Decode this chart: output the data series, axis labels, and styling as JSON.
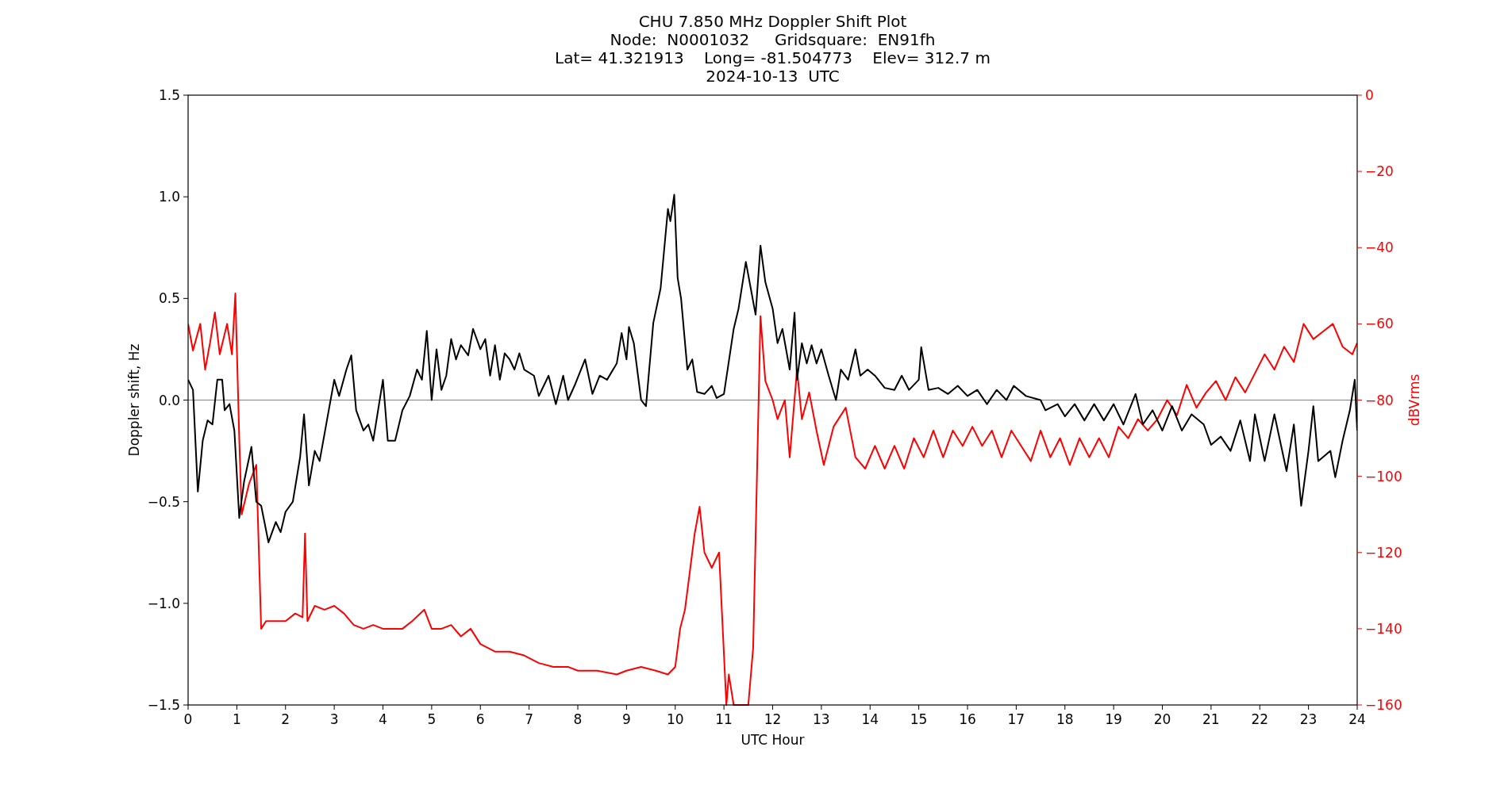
{
  "chart_data": {
    "type": "line",
    "title": "CHU 7.850 MHz Doppler Shift Plot",
    "subtitle": "Node:  N0001032     Gridsquare:  EN91fh\nLat= 41.321913    Long= -81.504773    Elev= 312.7 m\n2024-10-13  UTC",
    "xlabel": "UTC Hour",
    "ylabel": "Doppler shift, Hz",
    "y2label": "dBVrms",
    "xlim": [
      0,
      24
    ],
    "xticks": [
      0,
      1,
      2,
      3,
      4,
      5,
      6,
      7,
      8,
      9,
      10,
      11,
      12,
      13,
      14,
      15,
      16,
      17,
      18,
      19,
      20,
      21,
      22,
      23,
      24
    ],
    "ylim": [
      -1.5,
      1.5
    ],
    "yticks": [
      {
        "value": -1.5,
        "label": "−1.5"
      },
      {
        "value": -1,
        "label": "−1.0"
      },
      {
        "value": -0.5,
        "label": "−0.5"
      },
      {
        "value": 0,
        "label": "0.0"
      },
      {
        "value": 0.5,
        "label": "0.5"
      },
      {
        "value": 1,
        "label": "1.0"
      },
      {
        "value": 1.5,
        "label": "1.5"
      }
    ],
    "y2lim": [
      -160,
      0
    ],
    "y2ticks": [
      {
        "value": -160,
        "label": "−160"
      },
      {
        "value": -140,
        "label": "−140"
      },
      {
        "value": -120,
        "label": "−120"
      },
      {
        "value": -100,
        "label": "−100"
      },
      {
        "value": -80,
        "label": "−80"
      },
      {
        "value": -60,
        "label": "−60"
      },
      {
        "value": -40,
        "label": "−40"
      },
      {
        "value": -20,
        "label": "−20"
      },
      0
    ],
    "grid": false,
    "marker": "none",
    "line_style": "solid",
    "ref_lines": [
      {
        "axis": "y",
        "value": 0,
        "color": "#808080"
      }
    ],
    "series": [
      {
        "color": "#000000",
        "x": [
          0,
          0.1,
          0.2,
          0.3,
          0.4,
          0.5,
          0.6,
          0.7,
          0.75,
          0.85,
          0.95,
          1.05,
          1.15,
          1.3,
          1.4,
          1.5,
          1.65,
          1.8,
          1.9,
          2.0,
          2.15,
          2.3,
          2.38,
          2.48,
          2.6,
          2.7,
          2.85,
          3.0,
          3.1,
          3.25,
          3.35,
          3.45,
          3.6,
          3.7,
          3.8,
          4.0,
          4.1,
          4.25,
          4.4,
          4.55,
          4.7,
          4.8,
          4.9,
          5.0,
          5.1,
          5.2,
          5.3,
          5.4,
          5.5,
          5.6,
          5.75,
          5.85,
          6.0,
          6.1,
          6.2,
          6.3,
          6.4,
          6.5,
          6.6,
          6.7,
          6.8,
          6.9,
          7.1,
          7.2,
          7.4,
          7.55,
          7.7,
          7.8,
          7.95,
          8.15,
          8.3,
          8.45,
          8.6,
          8.8,
          8.9,
          9.0,
          9.05,
          9.15,
          9.3,
          9.4,
          9.55,
          9.7,
          9.85,
          9.9,
          9.98,
          10.05,
          10.12,
          10.25,
          10.35,
          10.45,
          10.6,
          10.75,
          10.85,
          11.0,
          11.2,
          11.3,
          11.45,
          11.55,
          11.65,
          11.75,
          11.85,
          12.0,
          12.1,
          12.2,
          12.35,
          12.45,
          12.5,
          12.6,
          12.7,
          12.8,
          12.9,
          13.0,
          13.15,
          13.3,
          13.4,
          13.55,
          13.7,
          13.8,
          13.95,
          14.1,
          14.3,
          14.5,
          14.65,
          14.8,
          15.0,
          15.05,
          15.2,
          15.4,
          15.6,
          15.8,
          16.0,
          16.2,
          16.4,
          16.6,
          16.8,
          16.95,
          17.2,
          17.5,
          17.6,
          17.85,
          18.0,
          18.2,
          18.4,
          18.6,
          18.8,
          19.0,
          19.2,
          19.45,
          19.6,
          19.8,
          20.0,
          20.2,
          20.4,
          20.6,
          20.85,
          21.0,
          21.2,
          21.4,
          21.6,
          21.8,
          21.9,
          22.1,
          22.3,
          22.55,
          22.7,
          22.85,
          23.0,
          23.1,
          23.2,
          23.45,
          23.55,
          23.7,
          23.85,
          23.95,
          24.0
        ],
        "values": [
          0.1,
          0.05,
          -0.45,
          -0.2,
          -0.1,
          -0.12,
          0.1,
          0.1,
          -0.05,
          -0.02,
          -0.15,
          -0.58,
          -0.4,
          -0.23,
          -0.5,
          -0.52,
          -0.7,
          -0.6,
          -0.65,
          -0.55,
          -0.5,
          -0.28,
          -0.07,
          -0.42,
          -0.25,
          -0.3,
          -0.1,
          0.1,
          0.02,
          0.15,
          0.22,
          -0.05,
          -0.15,
          -0.12,
          -0.2,
          0.1,
          -0.2,
          -0.2,
          -0.05,
          0.02,
          0.15,
          0.1,
          0.34,
          0.0,
          0.25,
          0.05,
          0.12,
          0.3,
          0.2,
          0.27,
          0.22,
          0.35,
          0.25,
          0.3,
          0.12,
          0.27,
          0.1,
          0.23,
          0.2,
          0.15,
          0.23,
          0.15,
          0.12,
          0.02,
          0.12,
          -0.02,
          0.12,
          0.0,
          0.08,
          0.2,
          0.03,
          0.12,
          0.1,
          0.18,
          0.33,
          0.2,
          0.36,
          0.28,
          0.0,
          -0.03,
          0.38,
          0.55,
          0.94,
          0.88,
          1.01,
          0.6,
          0.5,
          0.15,
          0.2,
          0.04,
          0.03,
          0.07,
          0.01,
          0.03,
          0.35,
          0.45,
          0.68,
          0.55,
          0.42,
          0.76,
          0.58,
          0.45,
          0.28,
          0.35,
          0.15,
          0.43,
          0.1,
          0.28,
          0.18,
          0.27,
          0.18,
          0.25,
          0.12,
          0.0,
          0.15,
          0.1,
          0.25,
          0.12,
          0.15,
          0.12,
          0.06,
          0.05,
          0.12,
          0.05,
          0.1,
          0.26,
          0.05,
          0.06,
          0.03,
          0.07,
          0.02,
          0.05,
          -0.02,
          0.05,
          0.0,
          0.07,
          0.02,
          0.0,
          -0.05,
          -0.02,
          -0.08,
          -0.02,
          -0.1,
          -0.02,
          -0.1,
          -0.02,
          -0.12,
          0.03,
          -0.12,
          -0.05,
          -0.15,
          -0.03,
          -0.15,
          -0.07,
          -0.12,
          -0.22,
          -0.18,
          -0.25,
          -0.1,
          -0.3,
          -0.07,
          -0.3,
          -0.07,
          -0.35,
          -0.12,
          -0.52,
          -0.25,
          -0.03,
          -0.3,
          -0.25,
          -0.38,
          -0.2,
          -0.05,
          0.1,
          -0.15
        ]
      },
      {
        "color": "#ff0000",
        "axis": "y2",
        "x": [
          0,
          0.1,
          0.25,
          0.35,
          0.45,
          0.55,
          0.65,
          0.8,
          0.9,
          0.97,
          1.05,
          1.1,
          1.25,
          1.4,
          1.5,
          1.6,
          1.8,
          2.0,
          2.2,
          2.35,
          2.4,
          2.45,
          2.6,
          2.8,
          3.0,
          3.2,
          3.4,
          3.6,
          3.8,
          4.0,
          4.4,
          4.6,
          4.85,
          5.0,
          5.2,
          5.4,
          5.6,
          5.8,
          6.0,
          6.3,
          6.6,
          6.9,
          7.2,
          7.5,
          7.8,
          8.0,
          8.4,
          8.8,
          9.0,
          9.3,
          9.6,
          9.85,
          10.0,
          10.1,
          10.2,
          10.3,
          10.4,
          10.5,
          10.6,
          10.75,
          10.9,
          11.05,
          11.1,
          11.2,
          11.5,
          11.6,
          11.75,
          11.85,
          12.0,
          12.1,
          12.25,
          12.35,
          12.5,
          12.6,
          12.75,
          12.9,
          13.05,
          13.25,
          13.5,
          13.7,
          13.9,
          14.1,
          14.3,
          14.5,
          14.7,
          14.9,
          15.1,
          15.3,
          15.5,
          15.7,
          15.9,
          16.1,
          16.3,
          16.5,
          16.7,
          16.9,
          17.1,
          17.3,
          17.5,
          17.7,
          17.9,
          18.1,
          18.3,
          18.5,
          18.7,
          18.9,
          19.1,
          19.3,
          19.5,
          19.7,
          19.9,
          20.1,
          20.3,
          20.5,
          20.7,
          20.9,
          21.1,
          21.3,
          21.5,
          21.7,
          21.9,
          22.1,
          22.3,
          22.5,
          22.7,
          22.9,
          23.1,
          23.3,
          23.5,
          23.7,
          23.9,
          24.0
        ],
        "values": [
          -60,
          -67,
          -60,
          -72,
          -65,
          -57,
          -68,
          -60,
          -68,
          -52,
          -90,
          -110,
          -102,
          -97,
          -140,
          -138,
          -138,
          -138,
          -136,
          -137,
          -115,
          -138,
          -134,
          -135,
          -134,
          -136,
          -139,
          -140,
          -139,
          -140,
          -140,
          -138,
          -135,
          -140,
          -140,
          -139,
          -142,
          -140,
          -144,
          -146,
          -146,
          -147,
          -149,
          -150,
          -150,
          -151,
          -151,
          -152,
          -151,
          -150,
          -151,
          -152,
          -150,
          -140,
          -135,
          -125,
          -115,
          -108,
          -120,
          -124,
          -120,
          -160,
          -152,
          -160,
          -160,
          -145,
          -58,
          -75,
          -80,
          -85,
          -80,
          -95,
          -72,
          -85,
          -78,
          -88,
          -97,
          -87,
          -82,
          -95,
          -98,
          -92,
          -98,
          -92,
          -98,
          -90,
          -95,
          -88,
          -95,
          -88,
          -92,
          -87,
          -92,
          -88,
          -95,
          -88,
          -92,
          -96,
          -88,
          -95,
          -90,
          -97,
          -90,
          -95,
          -90,
          -95,
          -87,
          -90,
          -85,
          -88,
          -85,
          -80,
          -84,
          -76,
          -82,
          -78,
          -75,
          -80,
          -74,
          -78,
          -73,
          -68,
          -72,
          -66,
          -70,
          -60,
          -64,
          -62,
          -60,
          -66,
          -68,
          -65
        ]
      }
    ]
  }
}
